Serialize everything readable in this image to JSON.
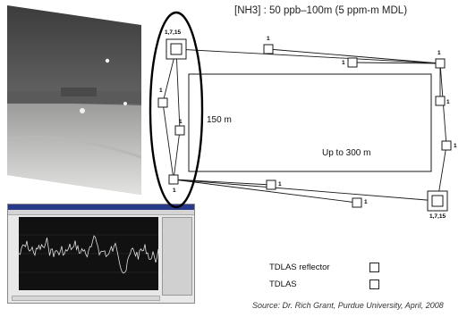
{
  "title": "[NH3] : 50 ppb–100m (5 ppm-m MDL)",
  "labels": {
    "top_reflector": "1,7,15",
    "bottom_reflector": "1,7,15",
    "one": "1",
    "height": "150 m",
    "width": "Up to 300 m"
  },
  "legend": {
    "reflector": "TDLAS reflector",
    "tdlas": "TDLAS"
  },
  "source": "Source: Dr. Rich Grant, Purdue University, April, 2008",
  "colors": {
    "line": "#1a1a1a",
    "ellipse": "#000000"
  }
}
